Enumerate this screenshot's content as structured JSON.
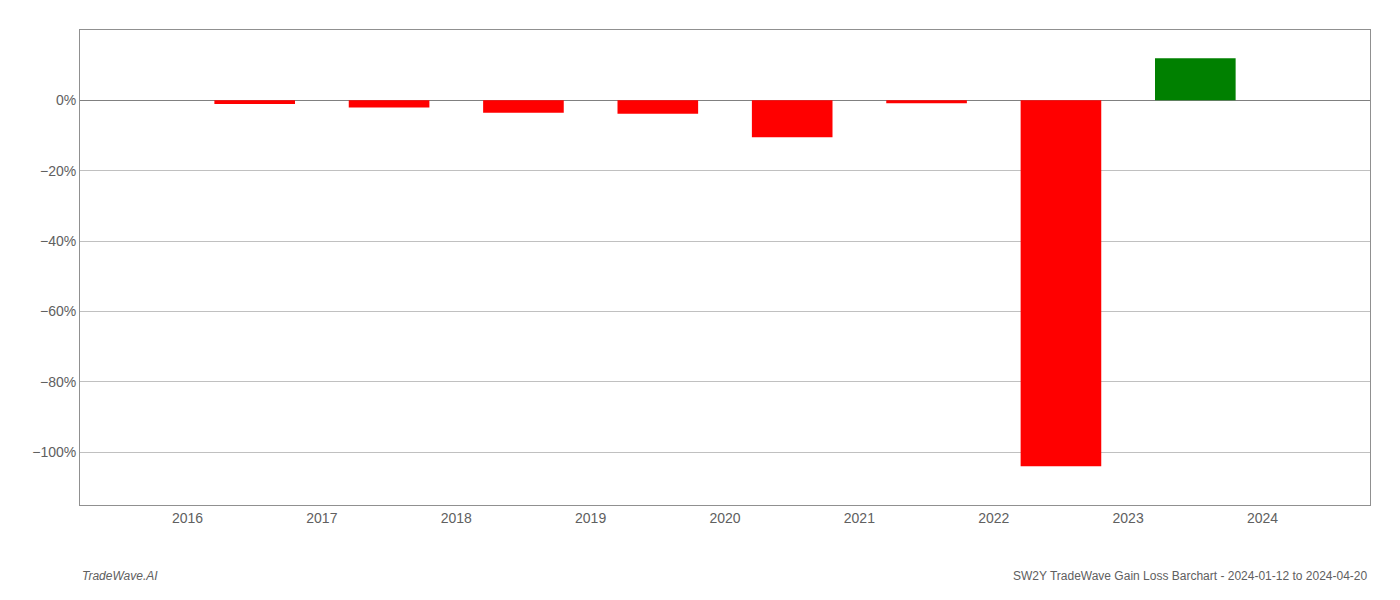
{
  "chart_data": {
    "type": "bar",
    "x": [
      2016.5,
      2017.5,
      2018.5,
      2019.5,
      2020.5,
      2021.5,
      2022.5,
      2023.5
    ],
    "values": [
      -1.0,
      -2.0,
      -3.5,
      -3.8,
      -10.5,
      -0.8,
      -104.0,
      12.0
    ],
    "colors": [
      "#ff0000",
      "#ff0000",
      "#ff0000",
      "#ff0000",
      "#ff0000",
      "#ff0000",
      "#ff0000",
      "#008000"
    ],
    "xlim": [
      2015.2,
      2024.8
    ],
    "xticks": [
      2016,
      2017,
      2018,
      2019,
      2020,
      2021,
      2022,
      2023,
      2024
    ],
    "ylim": [
      -115,
      20
    ],
    "yticks": [
      {
        "value": 0,
        "label": "0%"
      },
      {
        "value": -20,
        "label": "−20%"
      },
      {
        "value": -40,
        "label": "−40%"
      },
      {
        "value": -60,
        "label": "−60%"
      },
      {
        "value": -80,
        "label": "−80%"
      },
      {
        "value": -100,
        "label": "−100%"
      }
    ],
    "grid": true,
    "annotations": [
      "TradeWave.AI",
      "SW2Y TradeWave Gain Loss Barchart - 2024-01-12 to 2024-04-20"
    ]
  }
}
